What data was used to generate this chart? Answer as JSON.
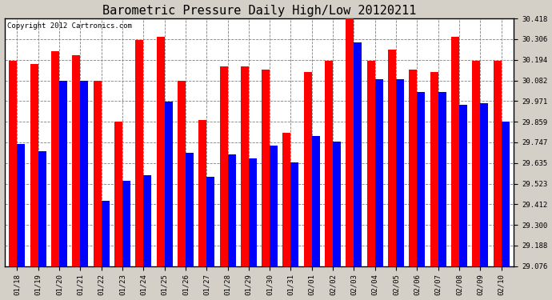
{
  "title": "Barometric Pressure Daily High/Low 20120211",
  "copyright": "Copyright 2012 Cartronics.com",
  "dates": [
    "01/18",
    "01/19",
    "01/20",
    "01/21",
    "01/22",
    "01/23",
    "01/24",
    "01/25",
    "01/26",
    "01/27",
    "01/28",
    "01/29",
    "01/30",
    "01/31",
    "02/01",
    "02/02",
    "02/03",
    "02/04",
    "02/05",
    "02/06",
    "02/07",
    "02/08",
    "02/09",
    "02/10"
  ],
  "highs": [
    30.19,
    30.17,
    30.24,
    30.22,
    30.08,
    29.86,
    30.3,
    30.32,
    30.08,
    29.87,
    30.16,
    30.16,
    30.14,
    29.8,
    30.13,
    30.19,
    30.43,
    30.19,
    30.25,
    30.14,
    30.13,
    30.32,
    30.19,
    30.19
  ],
  "lows": [
    29.74,
    29.7,
    30.08,
    30.08,
    29.43,
    29.54,
    29.57,
    29.97,
    29.69,
    29.56,
    29.68,
    29.66,
    29.73,
    29.64,
    29.78,
    29.75,
    30.29,
    30.09,
    30.09,
    30.02,
    30.02,
    29.95,
    29.96,
    29.86
  ],
  "high_color": "#ff0000",
  "low_color": "#0000ff",
  "background_color": "#d4d0c8",
  "plot_bg_color": "#ffffff",
  "grid_color": "#808080",
  "yticks": [
    29.076,
    29.188,
    29.3,
    29.412,
    29.523,
    29.635,
    29.747,
    29.859,
    29.971,
    30.082,
    30.194,
    30.306,
    30.418
  ],
  "ymin": 29.076,
  "ymax": 30.418,
  "title_fontsize": 11,
  "tick_fontsize": 6.5,
  "copyright_fontsize": 6.5
}
